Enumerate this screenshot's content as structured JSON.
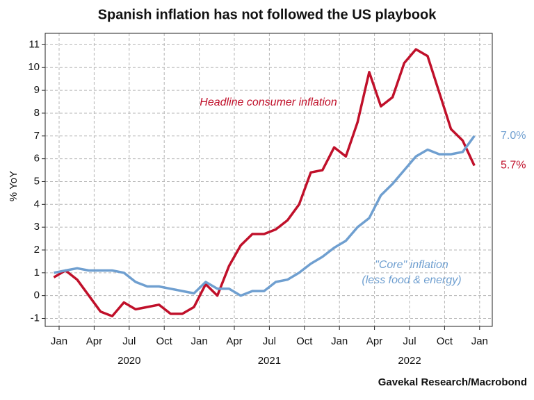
{
  "chart_data": {
    "type": "line",
    "title": "Spanish inflation has not followed the US playbook",
    "y_label": "% YoY",
    "source": "Gavekal Research/Macrobond",
    "x": [
      "2019-12",
      "2020-01",
      "2020-02",
      "2020-03",
      "2020-04",
      "2020-05",
      "2020-06",
      "2020-07",
      "2020-08",
      "2020-09",
      "2020-10",
      "2020-11",
      "2020-12",
      "2021-01",
      "2021-02",
      "2021-03",
      "2021-04",
      "2021-05",
      "2021-06",
      "2021-07",
      "2021-08",
      "2021-09",
      "2021-10",
      "2021-11",
      "2021-12",
      "2022-01",
      "2022-02",
      "2022-03",
      "2022-04",
      "2022-05",
      "2022-06",
      "2022-07",
      "2022-08",
      "2022-09",
      "2022-10",
      "2022-11",
      "2022-12"
    ],
    "xticks": [
      {
        "value": "2020-01",
        "label": "Jan"
      },
      {
        "value": "2020-04",
        "label": "Apr"
      },
      {
        "value": "2020-07",
        "label": "Jul"
      },
      {
        "value": "2020-10",
        "label": "Oct"
      },
      {
        "value": "2021-01",
        "label": "Jan"
      },
      {
        "value": "2021-04",
        "label": "Apr"
      },
      {
        "value": "2021-07",
        "label": "Jul"
      },
      {
        "value": "2021-10",
        "label": "Oct"
      },
      {
        "value": "2022-01",
        "label": "Jan"
      },
      {
        "value": "2022-04",
        "label": "Apr"
      },
      {
        "value": "2022-07",
        "label": "Jul"
      },
      {
        "value": "2022-10",
        "label": "Oct"
      },
      {
        "value": "2023-01",
        "label": "Jan"
      }
    ],
    "year_labels": [
      2020,
      2021,
      2022
    ],
    "ylim": [
      -1.35,
      11.5
    ],
    "yticks": [
      -1,
      0,
      1,
      2,
      3,
      4,
      5,
      6,
      7,
      8,
      9,
      10,
      11
    ],
    "grid": true,
    "series": [
      {
        "name": "Headline consumer inflation",
        "color": "#c0102a",
        "values": [
          0.8,
          1.1,
          0.7,
          0.0,
          -0.7,
          -0.9,
          -0.3,
          -0.6,
          -0.5,
          -0.4,
          -0.8,
          -0.8,
          -0.5,
          0.5,
          0.0,
          1.3,
          2.2,
          2.7,
          2.7,
          2.9,
          3.3,
          4.0,
          5.4,
          5.5,
          6.5,
          6.1,
          7.6,
          9.8,
          8.3,
          8.7,
          10.2,
          10.8,
          10.5,
          8.9,
          7.3,
          6.8,
          5.7
        ],
        "value_labels": [
          null,
          null,
          null,
          null,
          null,
          null,
          null,
          null,
          null,
          null,
          null,
          null,
          null,
          null,
          null,
          null,
          null,
          null,
          null,
          null,
          null,
          null,
          null,
          null,
          null,
          null,
          null,
          null,
          null,
          null,
          null,
          null,
          null,
          null,
          null,
          null,
          "5.7%"
        ]
      },
      {
        "name": "\"Core\" inflation",
        "note": "(less food & energy)",
        "color": "#6f9fd0",
        "values": [
          1.0,
          1.1,
          1.2,
          1.1,
          1.1,
          1.1,
          1.0,
          0.6,
          0.4,
          0.4,
          0.3,
          0.2,
          0.1,
          0.6,
          0.3,
          0.3,
          0.0,
          0.2,
          0.2,
          0.6,
          0.7,
          1.0,
          1.4,
          1.7,
          2.1,
          2.4,
          3.0,
          3.4,
          4.4,
          4.9,
          5.5,
          6.1,
          6.4,
          6.2,
          6.2,
          6.3,
          7.0
        ],
        "value_labels": [
          null,
          null,
          null,
          null,
          null,
          null,
          null,
          null,
          null,
          null,
          null,
          null,
          null,
          null,
          null,
          null,
          null,
          null,
          null,
          null,
          null,
          null,
          null,
          null,
          null,
          null,
          null,
          null,
          null,
          null,
          null,
          null,
          null,
          null,
          null,
          null,
          "7.0%"
        ]
      }
    ]
  }
}
